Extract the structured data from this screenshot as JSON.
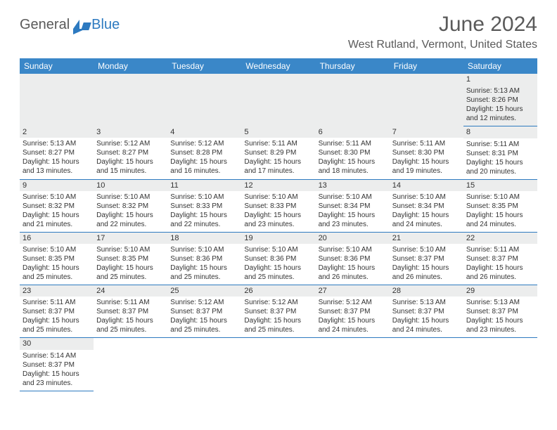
{
  "brand": {
    "part1": "General",
    "part2": "Blue"
  },
  "title": "June 2024",
  "location": "West Rutland, Vermont, United States",
  "colors": {
    "header_bg": "#3a87c8",
    "header_text": "#ffffff",
    "rule": "#2d7ac0",
    "daynum_bg": "#eceded",
    "body_text": "#333333",
    "title_text": "#5a5a5a",
    "brand_blue": "#2d7ac0"
  },
  "weekdays": [
    "Sunday",
    "Monday",
    "Tuesday",
    "Wednesday",
    "Thursday",
    "Friday",
    "Saturday"
  ],
  "weeks": [
    [
      null,
      null,
      null,
      null,
      null,
      null,
      {
        "n": "1",
        "sr": "5:13 AM",
        "ss": "8:26 PM",
        "dl": "15 hours and 12 minutes."
      }
    ],
    [
      {
        "n": "2",
        "sr": "5:13 AM",
        "ss": "8:27 PM",
        "dl": "15 hours and 13 minutes."
      },
      {
        "n": "3",
        "sr": "5:12 AM",
        "ss": "8:27 PM",
        "dl": "15 hours and 15 minutes."
      },
      {
        "n": "4",
        "sr": "5:12 AM",
        "ss": "8:28 PM",
        "dl": "15 hours and 16 minutes."
      },
      {
        "n": "5",
        "sr": "5:11 AM",
        "ss": "8:29 PM",
        "dl": "15 hours and 17 minutes."
      },
      {
        "n": "6",
        "sr": "5:11 AM",
        "ss": "8:30 PM",
        "dl": "15 hours and 18 minutes."
      },
      {
        "n": "7",
        "sr": "5:11 AM",
        "ss": "8:30 PM",
        "dl": "15 hours and 19 minutes."
      },
      {
        "n": "8",
        "sr": "5:11 AM",
        "ss": "8:31 PM",
        "dl": "15 hours and 20 minutes."
      }
    ],
    [
      {
        "n": "9",
        "sr": "5:10 AM",
        "ss": "8:32 PM",
        "dl": "15 hours and 21 minutes."
      },
      {
        "n": "10",
        "sr": "5:10 AM",
        "ss": "8:32 PM",
        "dl": "15 hours and 22 minutes."
      },
      {
        "n": "11",
        "sr": "5:10 AM",
        "ss": "8:33 PM",
        "dl": "15 hours and 22 minutes."
      },
      {
        "n": "12",
        "sr": "5:10 AM",
        "ss": "8:33 PM",
        "dl": "15 hours and 23 minutes."
      },
      {
        "n": "13",
        "sr": "5:10 AM",
        "ss": "8:34 PM",
        "dl": "15 hours and 23 minutes."
      },
      {
        "n": "14",
        "sr": "5:10 AM",
        "ss": "8:34 PM",
        "dl": "15 hours and 24 minutes."
      },
      {
        "n": "15",
        "sr": "5:10 AM",
        "ss": "8:35 PM",
        "dl": "15 hours and 24 minutes."
      }
    ],
    [
      {
        "n": "16",
        "sr": "5:10 AM",
        "ss": "8:35 PM",
        "dl": "15 hours and 25 minutes."
      },
      {
        "n": "17",
        "sr": "5:10 AM",
        "ss": "8:35 PM",
        "dl": "15 hours and 25 minutes."
      },
      {
        "n": "18",
        "sr": "5:10 AM",
        "ss": "8:36 PM",
        "dl": "15 hours and 25 minutes."
      },
      {
        "n": "19",
        "sr": "5:10 AM",
        "ss": "8:36 PM",
        "dl": "15 hours and 25 minutes."
      },
      {
        "n": "20",
        "sr": "5:10 AM",
        "ss": "8:36 PM",
        "dl": "15 hours and 26 minutes."
      },
      {
        "n": "21",
        "sr": "5:10 AM",
        "ss": "8:37 PM",
        "dl": "15 hours and 26 minutes."
      },
      {
        "n": "22",
        "sr": "5:11 AM",
        "ss": "8:37 PM",
        "dl": "15 hours and 26 minutes."
      }
    ],
    [
      {
        "n": "23",
        "sr": "5:11 AM",
        "ss": "8:37 PM",
        "dl": "15 hours and 25 minutes."
      },
      {
        "n": "24",
        "sr": "5:11 AM",
        "ss": "8:37 PM",
        "dl": "15 hours and 25 minutes."
      },
      {
        "n": "25",
        "sr": "5:12 AM",
        "ss": "8:37 PM",
        "dl": "15 hours and 25 minutes."
      },
      {
        "n": "26",
        "sr": "5:12 AM",
        "ss": "8:37 PM",
        "dl": "15 hours and 25 minutes."
      },
      {
        "n": "27",
        "sr": "5:12 AM",
        "ss": "8:37 PM",
        "dl": "15 hours and 24 minutes."
      },
      {
        "n": "28",
        "sr": "5:13 AM",
        "ss": "8:37 PM",
        "dl": "15 hours and 24 minutes."
      },
      {
        "n": "29",
        "sr": "5:13 AM",
        "ss": "8:37 PM",
        "dl": "15 hours and 23 minutes."
      }
    ],
    [
      {
        "n": "30",
        "sr": "5:14 AM",
        "ss": "8:37 PM",
        "dl": "15 hours and 23 minutes."
      },
      null,
      null,
      null,
      null,
      null,
      null
    ]
  ],
  "labels": {
    "sunrise": "Sunrise: ",
    "sunset": "Sunset: ",
    "daylight": "Daylight: "
  }
}
